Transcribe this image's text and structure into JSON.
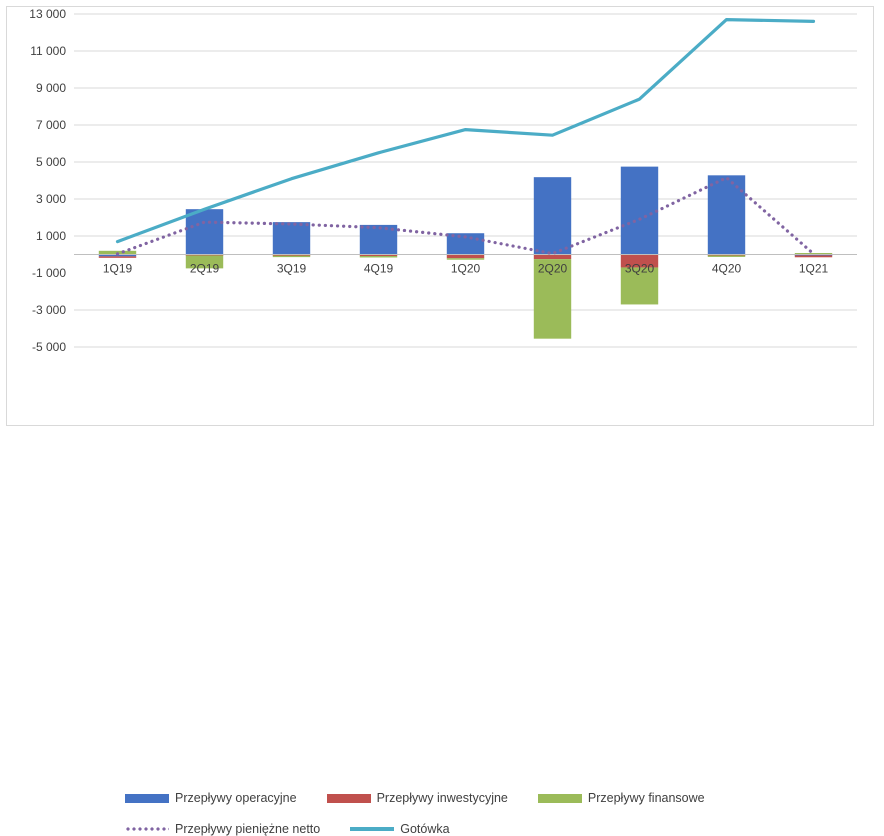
{
  "chart_data": {
    "type": "bar",
    "categories": [
      "1Q19",
      "2Q19",
      "3Q19",
      "4Q19",
      "1Q20",
      "2Q20",
      "3Q20",
      "4Q20",
      "1Q21"
    ],
    "series": [
      {
        "name": "Przepływy operacyjne",
        "kind": "bar",
        "color": "#4472c4",
        "values": [
          -100,
          2450,
          1750,
          1600,
          1150,
          4180,
          4750,
          4280,
          -50
        ]
      },
      {
        "name": "Przepływy inwestycyjne",
        "kind": "bar",
        "color": "#c0504d",
        "values": [
          -80,
          -50,
          -60,
          -80,
          -200,
          -250,
          -700,
          -50,
          -100
        ]
      },
      {
        "name": "Przepływy finansowe",
        "kind": "bar",
        "color": "#9bbb59",
        "values": [
          200,
          -700,
          -80,
          -70,
          -30,
          -4300,
          -2000,
          -60,
          80
        ]
      },
      {
        "name": "Przepływy pieniężne netto",
        "kind": "line",
        "style": "dotted",
        "color": "#8064a2",
        "values": [
          30,
          1750,
          1650,
          1450,
          950,
          50,
          1900,
          4150,
          40
        ]
      },
      {
        "name": "Gotówka",
        "kind": "line",
        "style": "solid",
        "color": "#4bacc6",
        "values": [
          700,
          2450,
          4100,
          5500,
          6750,
          6450,
          8400,
          12700,
          12600
        ]
      }
    ],
    "yticks": [
      "-5 000",
      "-3 000",
      "-1 000",
      "1 000",
      "3 000",
      "5 000",
      "7 000",
      "9 000",
      "11 000",
      "13 000"
    ],
    "ylim": [
      -5000,
      13000
    ],
    "grid": true,
    "legend_position": "bottom"
  }
}
